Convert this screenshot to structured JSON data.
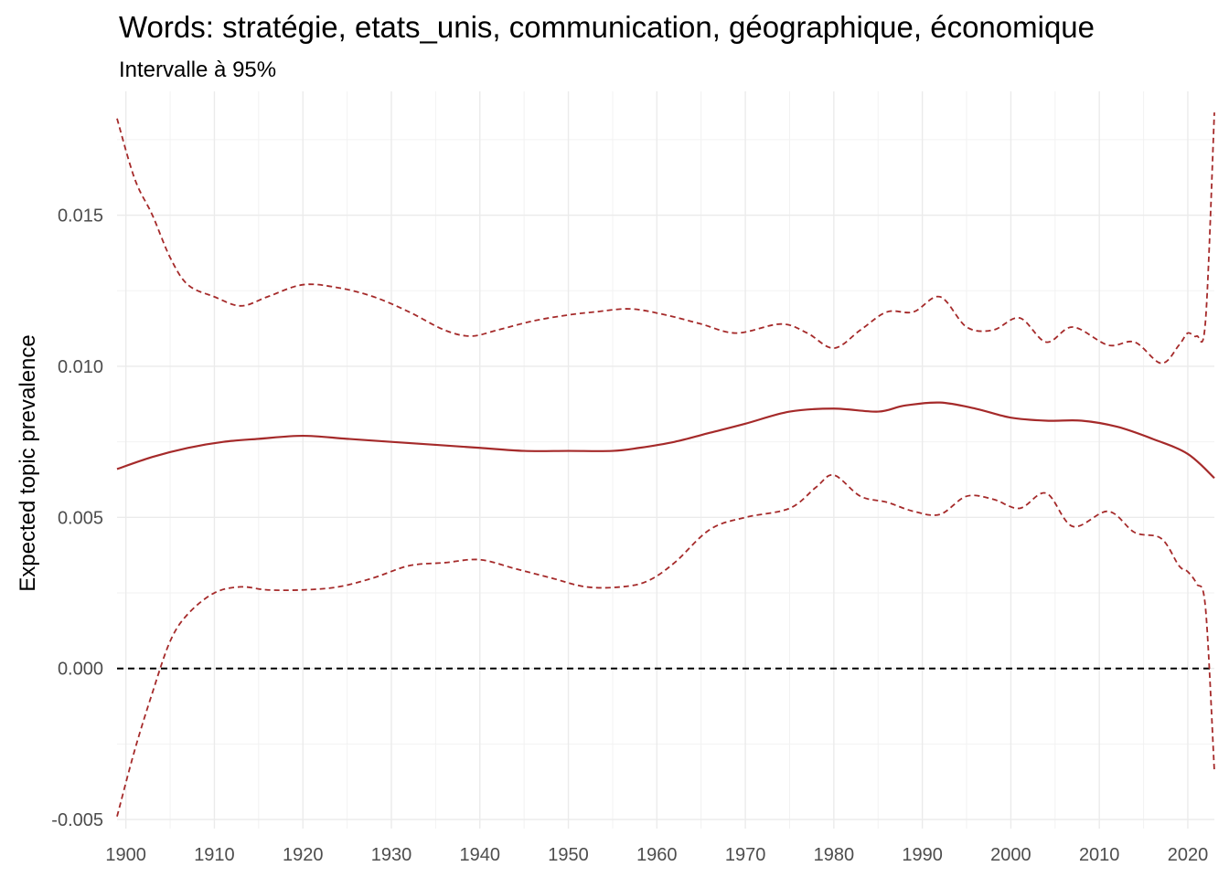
{
  "chart_data": {
    "type": "line",
    "title": "Words: stratégie, etats_unis, communication, géographique, économique",
    "subtitle": "Intervalle à 95%",
    "xlabel": "",
    "ylabel": "Expected topic prevalence",
    "xlim": [
      1899,
      2023
    ],
    "ylim": [
      -0.0053,
      0.0191
    ],
    "x_ticks": [
      1900,
      1910,
      1920,
      1930,
      1940,
      1950,
      1960,
      1970,
      1980,
      1990,
      2000,
      2010,
      2020
    ],
    "y_ticks": [
      -0.005,
      0.0,
      0.005,
      0.01,
      0.015
    ],
    "y_tick_labels": [
      "-0.005",
      "0.000",
      "0.005",
      "0.010",
      "0.015"
    ],
    "grid": true,
    "reference_line": {
      "y": 0,
      "style": "dashed",
      "color": "#000000"
    },
    "colors": {
      "series": "#a52a2a",
      "grid_major": "#ebebeb",
      "grid_minor": "#f2f2f2"
    },
    "series": [
      {
        "role": "estimate",
        "style": "solid",
        "x": [
          1899,
          1903,
          1907,
          1911,
          1915,
          1920,
          1925,
          1930,
          1935,
          1940,
          1945,
          1950,
          1955,
          1958,
          1962,
          1966,
          1970,
          1975,
          1980,
          1985,
          1988,
          1992,
          1996,
          2000,
          2004,
          2008,
          2012,
          2016,
          2020,
          2023
        ],
        "y": [
          0.0066,
          0.007,
          0.0073,
          0.0075,
          0.0076,
          0.0077,
          0.0076,
          0.0075,
          0.0074,
          0.0073,
          0.0072,
          0.0072,
          0.0072,
          0.0073,
          0.0075,
          0.0078,
          0.0081,
          0.0085,
          0.0086,
          0.0085,
          0.0087,
          0.0088,
          0.0086,
          0.0083,
          0.0082,
          0.0082,
          0.008,
          0.0076,
          0.0071,
          0.0063
        ]
      },
      {
        "role": "upper",
        "style": "dashed",
        "x": [
          1899,
          1901,
          1903,
          1905,
          1907,
          1910,
          1913,
          1916,
          1920,
          1924,
          1928,
          1932,
          1936,
          1939,
          1942,
          1946,
          1950,
          1953,
          1957,
          1961,
          1965,
          1969,
          1974,
          1977,
          1980,
          1983,
          1986,
          1989,
          1992,
          1995,
          1998,
          2001,
          2004,
          2007,
          2011,
          2014,
          2017,
          2019,
          2020,
          2021,
          2022,
          2023
        ],
        "y": [
          0.0182,
          0.0162,
          0.015,
          0.0136,
          0.0127,
          0.0123,
          0.012,
          0.0123,
          0.0127,
          0.0126,
          0.0123,
          0.0118,
          0.0112,
          0.011,
          0.0112,
          0.0115,
          0.0117,
          0.0118,
          0.0119,
          0.0117,
          0.0114,
          0.0111,
          0.0114,
          0.0111,
          0.0106,
          0.0112,
          0.0118,
          0.0118,
          0.0123,
          0.0113,
          0.0112,
          0.0116,
          0.0108,
          0.0113,
          0.0107,
          0.0108,
          0.0101,
          0.0107,
          0.0111,
          0.011,
          0.0115,
          0.0184
        ]
      },
      {
        "role": "lower",
        "style": "dashed",
        "x": [
          1899,
          1901,
          1903,
          1905,
          1907,
          1910,
          1913,
          1916,
          1920,
          1924,
          1928,
          1932,
          1936,
          1940,
          1944,
          1948,
          1952,
          1956,
          1959,
          1962,
          1966,
          1970,
          1975,
          1978,
          1980,
          1983,
          1986,
          1989,
          1992,
          1995,
          1998,
          2001,
          2004,
          2007,
          2011,
          2014,
          2017,
          2019,
          2020,
          2021,
          2022,
          2023
        ],
        "y": [
          -0.0049,
          -0.0027,
          -0.0008,
          0.0009,
          0.0018,
          0.0025,
          0.0027,
          0.0026,
          0.0026,
          0.0027,
          0.003,
          0.0034,
          0.0035,
          0.0036,
          0.0033,
          0.003,
          0.0027,
          0.0027,
          0.0029,
          0.0035,
          0.0046,
          0.005,
          0.0053,
          0.006,
          0.0064,
          0.0057,
          0.0055,
          0.0052,
          0.0051,
          0.0057,
          0.0056,
          0.0053,
          0.0058,
          0.0047,
          0.0052,
          0.0045,
          0.0043,
          0.0034,
          0.0032,
          0.0028,
          0.002,
          -0.0034
        ]
      }
    ]
  }
}
